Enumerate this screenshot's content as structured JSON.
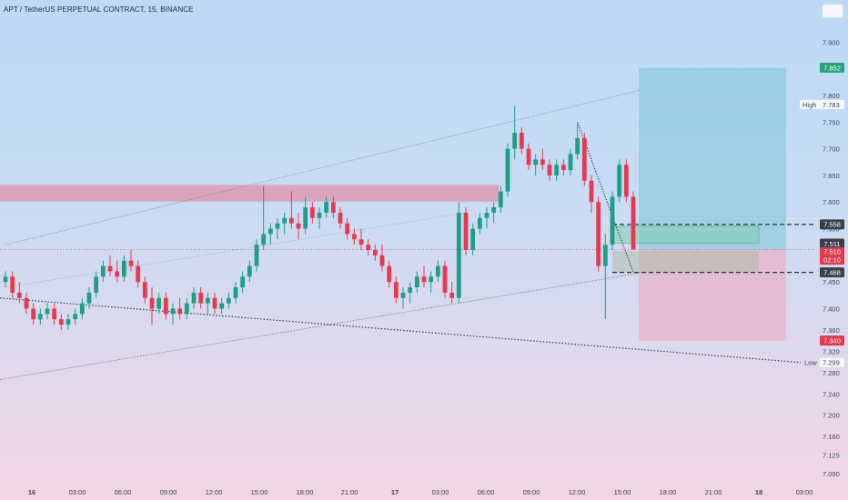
{
  "header": {
    "title": "APT / TetherUS PERPETUAL CONTRACT, 15, BINANCE"
  },
  "colors": {
    "up": "#1e9e86",
    "down": "#e8394f",
    "resistance_zone": "#e08aa3",
    "profit_zone": "#7ec5d6",
    "loss_zone": "#eab0c7",
    "label_green": "#27a47a",
    "label_red": "#e03a4e",
    "label_dark": "#3a3f4a"
  },
  "chart_data": {
    "type": "candlestick",
    "instrument": "APT / TetherUS PERPETUAL CONTRACT",
    "interval": "15",
    "exchange": "BINANCE",
    "ylim": [
      7.075,
      7.945
    ],
    "y_ticks": [
      "7.900",
      "7.850",
      "7.800",
      "7.750",
      "7.700",
      "7.650",
      "7.600",
      "7.550",
      "7.500",
      "7.450",
      "7.400",
      "7.360",
      "7.320",
      "7.280",
      "7.240",
      "7.200",
      "7.160",
      "7.125",
      "7.090"
    ],
    "x_ticks": [
      "16",
      "03:00",
      "06:00",
      "09:00",
      "12:00",
      "15:00",
      "18:00",
      "21:00",
      "17",
      "03:00",
      "06:00",
      "09:00",
      "12:00",
      "15:00",
      "18:00",
      "21:00",
      "18",
      "03:00"
    ],
    "candles": [
      [
        7.45,
        7.47,
        7.44,
        7.46
      ],
      [
        7.46,
        7.47,
        7.42,
        7.43
      ],
      [
        7.43,
        7.45,
        7.41,
        7.42
      ],
      [
        7.42,
        7.43,
        7.39,
        7.4
      ],
      [
        7.4,
        7.41,
        7.37,
        7.38
      ],
      [
        7.38,
        7.4,
        7.37,
        7.39
      ],
      [
        7.39,
        7.41,
        7.38,
        7.4
      ],
      [
        7.4,
        7.41,
        7.37,
        7.38
      ],
      [
        7.38,
        7.39,
        7.36,
        7.37
      ],
      [
        7.37,
        7.39,
        7.36,
        7.38
      ],
      [
        7.38,
        7.4,
        7.37,
        7.39
      ],
      [
        7.39,
        7.42,
        7.38,
        7.41
      ],
      [
        7.41,
        7.44,
        7.4,
        7.43
      ],
      [
        7.43,
        7.47,
        7.42,
        7.46
      ],
      [
        7.46,
        7.49,
        7.45,
        7.48
      ],
      [
        7.48,
        7.5,
        7.46,
        7.47
      ],
      [
        7.47,
        7.49,
        7.45,
        7.46
      ],
      [
        7.46,
        7.5,
        7.45,
        7.49
      ],
      [
        7.49,
        7.51,
        7.47,
        7.48
      ],
      [
        7.48,
        7.49,
        7.44,
        7.45
      ],
      [
        7.45,
        7.46,
        7.41,
        7.42
      ],
      [
        7.42,
        7.44,
        7.37,
        7.4
      ],
      [
        7.4,
        7.43,
        7.39,
        7.42
      ],
      [
        7.42,
        7.43,
        7.38,
        7.39
      ],
      [
        7.39,
        7.41,
        7.37,
        7.4
      ],
      [
        7.4,
        7.42,
        7.38,
        7.39
      ],
      [
        7.39,
        7.42,
        7.38,
        7.41
      ],
      [
        7.41,
        7.44,
        7.4,
        7.43
      ],
      [
        7.43,
        7.44,
        7.4,
        7.41
      ],
      [
        7.41,
        7.43,
        7.39,
        7.42
      ],
      [
        7.42,
        7.43,
        7.39,
        7.4
      ],
      [
        7.4,
        7.42,
        7.39,
        7.41
      ],
      [
        7.41,
        7.43,
        7.4,
        7.42
      ],
      [
        7.42,
        7.45,
        7.41,
        7.44
      ],
      [
        7.44,
        7.47,
        7.43,
        7.46
      ],
      [
        7.46,
        7.49,
        7.45,
        7.48
      ],
      [
        7.48,
        7.53,
        7.47,
        7.52
      ],
      [
        7.52,
        7.63,
        7.51,
        7.54
      ],
      [
        7.54,
        7.56,
        7.52,
        7.55
      ],
      [
        7.55,
        7.57,
        7.53,
        7.56
      ],
      [
        7.56,
        7.58,
        7.54,
        7.57
      ],
      [
        7.57,
        7.62,
        7.55,
        7.56
      ],
      [
        7.56,
        7.58,
        7.53,
        7.55
      ],
      [
        7.55,
        7.61,
        7.54,
        7.59
      ],
      [
        7.59,
        7.6,
        7.56,
        7.57
      ],
      [
        7.57,
        7.59,
        7.55,
        7.58
      ],
      [
        7.58,
        7.61,
        7.57,
        7.6
      ],
      [
        7.6,
        7.61,
        7.57,
        7.58
      ],
      [
        7.58,
        7.59,
        7.55,
        7.56
      ],
      [
        7.56,
        7.57,
        7.53,
        7.54
      ],
      [
        7.54,
        7.55,
        7.52,
        7.53
      ],
      [
        7.53,
        7.55,
        7.51,
        7.52
      ],
      [
        7.52,
        7.53,
        7.5,
        7.51
      ],
      [
        7.51,
        7.52,
        7.49,
        7.5
      ],
      [
        7.5,
        7.52,
        7.47,
        7.48
      ],
      [
        7.48,
        7.49,
        7.44,
        7.45
      ],
      [
        7.45,
        7.46,
        7.41,
        7.42
      ],
      [
        7.42,
        7.44,
        7.4,
        7.43
      ],
      [
        7.43,
        7.45,
        7.41,
        7.44
      ],
      [
        7.44,
        7.47,
        7.43,
        7.46
      ],
      [
        7.46,
        7.48,
        7.44,
        7.45
      ],
      [
        7.45,
        7.47,
        7.43,
        7.46
      ],
      [
        7.46,
        7.49,
        7.45,
        7.48
      ],
      [
        7.48,
        7.49,
        7.42,
        7.43
      ],
      [
        7.43,
        7.45,
        7.41,
        7.42
      ],
      [
        7.42,
        7.6,
        7.41,
        7.58
      ],
      [
        7.58,
        7.59,
        7.5,
        7.51
      ],
      [
        7.51,
        7.56,
        7.5,
        7.55
      ],
      [
        7.55,
        7.58,
        7.54,
        7.57
      ],
      [
        7.57,
        7.59,
        7.55,
        7.58
      ],
      [
        7.58,
        7.6,
        7.56,
        7.59
      ],
      [
        7.59,
        7.63,
        7.58,
        7.62
      ],
      [
        7.62,
        7.71,
        7.61,
        7.7
      ],
      [
        7.7,
        7.78,
        7.68,
        7.73
      ],
      [
        7.73,
        7.74,
        7.69,
        7.7
      ],
      [
        7.7,
        7.71,
        7.66,
        7.67
      ],
      [
        7.67,
        7.69,
        7.65,
        7.68
      ],
      [
        7.68,
        7.7,
        7.66,
        7.67
      ],
      [
        7.67,
        7.68,
        7.64,
        7.65
      ],
      [
        7.65,
        7.68,
        7.64,
        7.67
      ],
      [
        7.67,
        7.68,
        7.65,
        7.66
      ],
      [
        7.66,
        7.7,
        7.65,
        7.69
      ],
      [
        7.69,
        7.75,
        7.68,
        7.72
      ],
      [
        7.72,
        7.73,
        7.63,
        7.64
      ],
      [
        7.64,
        7.65,
        7.58,
        7.6
      ],
      [
        7.6,
        7.61,
        7.47,
        7.48
      ],
      [
        7.48,
        7.54,
        7.38,
        7.52
      ],
      [
        7.52,
        7.62,
        7.51,
        7.61
      ],
      [
        7.61,
        7.68,
        7.6,
        7.67
      ],
      [
        7.67,
        7.68,
        7.6,
        7.61
      ],
      [
        7.61,
        7.62,
        7.51,
        7.511
      ]
    ],
    "annotations": {
      "resistance_zone": {
        "top": 7.632,
        "bottom": 7.601
      },
      "upper_trendline": [
        [
          0,
          7.52
        ],
        [
          91,
          7.81
        ]
      ],
      "lower_trendline": [
        [
          0,
          7.267
        ],
        [
          91,
          7.467
        ]
      ],
      "lower_dotted_line": [
        [
          0,
          7.42
        ],
        [
          101,
          7.295
        ]
      ],
      "descending_dotted": [
        [
          82,
          7.75
        ],
        [
          90,
          7.468
        ]
      ],
      "long_position": {
        "entry": 7.51,
        "stop": 7.34,
        "target": 7.852
      },
      "dashed_levels": [
        7.558,
        7.468
      ],
      "high_value": 7.783,
      "low_value": 7.299
    },
    "price_labels": {
      "target": "7.852",
      "high_text": "High",
      "high": "7.783",
      "level_upper": "7.558",
      "last_price": "7.511",
      "current": "7.510",
      "countdown": "02:10",
      "level_lower": "7.468",
      "stop": "7.340",
      "low_text": "Low",
      "low": "7.299"
    }
  }
}
